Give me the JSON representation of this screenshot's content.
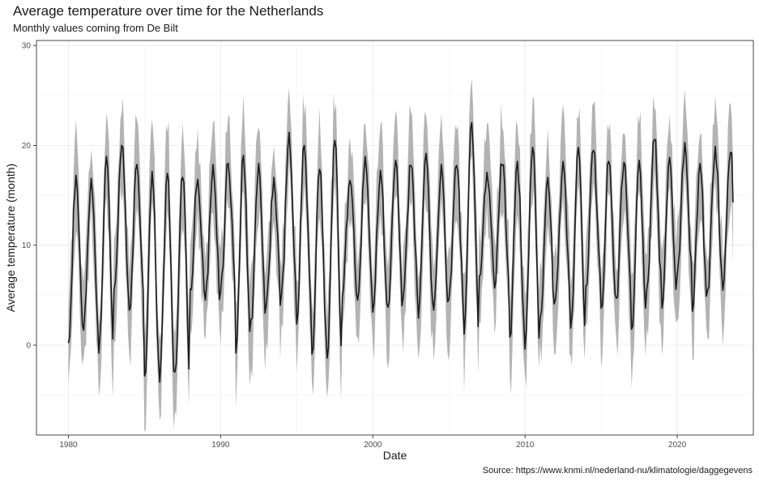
{
  "chart_data": {
    "type": "line",
    "title": "Average temperature over time for the Netherlands",
    "subtitle": "Monthly values coming from De Bilt",
    "xlabel": "Date",
    "ylabel": "Average temperature (month)",
    "caption": "Source: https://www.knmi.nl/nederland-nu/klimatologie/daggegevens",
    "xlim": [
      1977.9,
      2025.0
    ],
    "ylim": [
      -9.0,
      30.5
    ],
    "x_ticks": [
      1980,
      1990,
      2000,
      2010,
      2020
    ],
    "y_ticks": [
      0,
      10,
      20,
      30
    ],
    "grid": true,
    "legend": "none",
    "ribbon_color": "#b3b3b3",
    "line_color": "#1a1a1a",
    "series": [
      {
        "type": "line",
        "x_start": "1980-01",
        "x_end": "2023-09",
        "step": "month",
        "summer_peaks": [
          {
            "year": 1980,
            "value": 17.0
          },
          {
            "year": 1981,
            "value": 16.7
          },
          {
            "year": 1982,
            "value": 18.9
          },
          {
            "year": 1983,
            "value": 20.0
          },
          {
            "year": 1984,
            "value": 18.1
          },
          {
            "year": 1985,
            "value": 17.4
          },
          {
            "year": 1986,
            "value": 17.2
          },
          {
            "year": 1987,
            "value": 16.8
          },
          {
            "year": 1988,
            "value": 16.6
          },
          {
            "year": 1989,
            "value": 18.1
          },
          {
            "year": 1990,
            "value": 18.2
          },
          {
            "year": 1991,
            "value": 19.0
          },
          {
            "year": 1992,
            "value": 18.2
          },
          {
            "year": 1993,
            "value": 16.8
          },
          {
            "year": 1994,
            "value": 21.3
          },
          {
            "year": 1995,
            "value": 20.0
          },
          {
            "year": 1996,
            "value": 17.6
          },
          {
            "year": 1997,
            "value": 20.5
          },
          {
            "year": 1998,
            "value": 16.5
          },
          {
            "year": 1999,
            "value": 18.9
          },
          {
            "year": 2000,
            "value": 17.5
          },
          {
            "year": 2001,
            "value": 18.5
          },
          {
            "year": 2002,
            "value": 18.0
          },
          {
            "year": 2003,
            "value": 19.2
          },
          {
            "year": 2004,
            "value": 18.1
          },
          {
            "year": 2005,
            "value": 18.0
          },
          {
            "year": 2006,
            "value": 22.3
          },
          {
            "year": 2007,
            "value": 17.3
          },
          {
            "year": 2008,
            "value": 18.0
          },
          {
            "year": 2009,
            "value": 18.4
          },
          {
            "year": 2010,
            "value": 19.8
          },
          {
            "year": 2011,
            "value": 16.8
          },
          {
            "year": 2012,
            "value": 18.4
          },
          {
            "year": 2013,
            "value": 19.8
          },
          {
            "year": 2014,
            "value": 19.5
          },
          {
            "year": 2015,
            "value": 18.4
          },
          {
            "year": 2016,
            "value": 18.3
          },
          {
            "year": 2017,
            "value": 18.5
          },
          {
            "year": 2018,
            "value": 20.6
          },
          {
            "year": 2019,
            "value": 18.8
          },
          {
            "year": 2020,
            "value": 20.3
          },
          {
            "year": 2021,
            "value": 18.2
          },
          {
            "year": 2022,
            "value": 19.9
          },
          {
            "year": 2023,
            "value": 19.3
          }
        ],
        "winter_troughs": [
          {
            "year": 1980,
            "value": 0.2
          },
          {
            "year": 1981,
            "value": 1.5
          },
          {
            "year": 1982,
            "value": -0.8
          },
          {
            "year": 1983,
            "value": 5.6
          },
          {
            "year": 1984,
            "value": 3.5
          },
          {
            "year": 1985,
            "value": -3.1
          },
          {
            "year": 1986,
            "value": -3.7
          },
          {
            "year": 1987,
            "value": -2.7
          },
          {
            "year": 1988,
            "value": 5.6
          },
          {
            "year": 1989,
            "value": 4.5
          },
          {
            "year": 1990,
            "value": 5.4
          },
          {
            "year": 1991,
            "value": -0.8
          },
          {
            "year": 1992,
            "value": 2.6
          },
          {
            "year": 1993,
            "value": 4.0
          },
          {
            "year": 1994,
            "value": 5.1
          },
          {
            "year": 1995,
            "value": 2.1
          },
          {
            "year": 1996,
            "value": -0.9
          },
          {
            "year": 1997,
            "value": -1.3
          },
          {
            "year": 1998,
            "value": 4.8
          },
          {
            "year": 1999,
            "value": 4.5
          },
          {
            "year": 2000,
            "value": 3.3
          },
          {
            "year": 2001,
            "value": 3.8
          },
          {
            "year": 2002,
            "value": 4.8
          },
          {
            "year": 2003,
            "value": 2.7
          },
          {
            "year": 2004,
            "value": 3.5
          },
          {
            "year": 2005,
            "value": 4.6
          },
          {
            "year": 2006,
            "value": 1.1
          },
          {
            "year": 2007,
            "value": 6.9
          },
          {
            "year": 2008,
            "value": 5.7
          },
          {
            "year": 2009,
            "value": 0.8
          },
          {
            "year": 2010,
            "value": -0.4
          },
          {
            "year": 2011,
            "value": 2.8
          },
          {
            "year": 2012,
            "value": 4.6
          },
          {
            "year": 2013,
            "value": 1.7
          },
          {
            "year": 2014,
            "value": 5.9
          },
          {
            "year": 2015,
            "value": 3.7
          },
          {
            "year": 2016,
            "value": 4.7
          },
          {
            "year": 2017,
            "value": 1.6
          },
          {
            "year": 2018,
            "value": 5.6
          },
          {
            "year": 2019,
            "value": 3.7
          },
          {
            "year": 2020,
            "value": 7.0
          },
          {
            "year": 2021,
            "value": 3.4
          },
          {
            "year": 2022,
            "value": 5.5
          },
          {
            "year": 2023,
            "value": 5.5
          }
        ],
        "end_value": 14.3
      }
    ]
  }
}
